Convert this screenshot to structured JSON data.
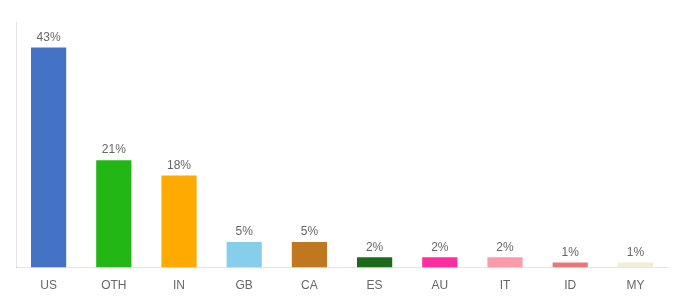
{
  "chart_data": {
    "type": "bar",
    "categories": [
      "US",
      "OTH",
      "IN",
      "GB",
      "CA",
      "ES",
      "AU",
      "IT",
      "ID",
      "MY"
    ],
    "values": [
      43,
      21,
      18,
      5,
      5,
      2,
      2,
      2,
      1,
      1
    ],
    "value_labels": [
      "43%",
      "21%",
      "18%",
      "5%",
      "5%",
      "2%",
      "2%",
      "2%",
      "1%",
      "1%"
    ],
    "data_labels": true,
    "colors": [
      "#4472c4",
      "#22b714",
      "#ffaa00",
      "#87ceeb",
      "#c07820",
      "#1a6b1a",
      "#ff2da0",
      "#ff9aaa",
      "#e87878",
      "#f0edd8"
    ],
    "ylim": [
      0,
      48
    ],
    "grid": false,
    "tick_labels": "x"
  }
}
